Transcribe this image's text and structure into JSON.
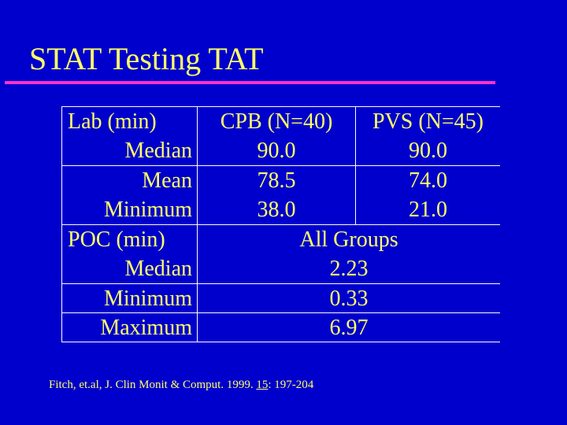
{
  "title": "STAT Testing TAT",
  "colors": {
    "background": "#0000CC",
    "text": "#FFFF66",
    "title_rule": "#FF33CC",
    "grid_lines": "#FFFFFF"
  },
  "table": {
    "header": {
      "label": "Lab  (min)",
      "col_a": "CPB (N=40)",
      "col_b": "PVS (N=45)"
    },
    "lab_rows": [
      {
        "label": "Median",
        "col_a": "90.0",
        "col_b": "90.0"
      },
      {
        "label": "Mean",
        "col_a": "78.5",
        "col_b": "74.0"
      },
      {
        "label": "Minimum",
        "col_a": "38.0",
        "col_b": "21.0"
      }
    ],
    "poc_header": {
      "label": "POC (min)",
      "value": "All Groups"
    },
    "poc_rows": [
      {
        "label": "Median",
        "value": "2.23"
      },
      {
        "label": "Minimum",
        "value": "0.33"
      },
      {
        "label": "Maximum",
        "value": "6.97"
      }
    ]
  },
  "citation": {
    "prefix": "Fitch, et.al, J. Clin Monit & Comput.  1999. ",
    "volume": "15",
    "suffix": ": 197-204"
  }
}
